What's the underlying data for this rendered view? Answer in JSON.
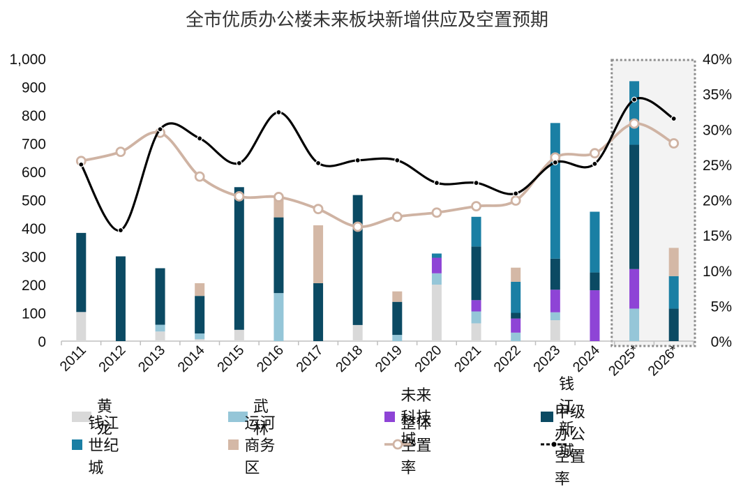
{
  "chart_data": {
    "title": "全市优质办公楼未来板块新增供应及空置预期",
    "type": "bar",
    "stacked": true,
    "categories": [
      "2011",
      "2012",
      "2013",
      "2014",
      "2015",
      "2016",
      "2017",
      "2018",
      "2019",
      "2020",
      "2021",
      "2022",
      "2023",
      "2024",
      "2025*",
      "2026*"
    ],
    "left_axis": {
      "ylim": [
        0,
        1000
      ],
      "ticks": [
        "0",
        "100",
        "200",
        "300",
        "400",
        "500",
        "600",
        "700",
        "800",
        "900",
        "1,000"
      ]
    },
    "right_axis": {
      "ylim": [
        0,
        40
      ],
      "ticks": [
        "0%",
        "5%",
        "10%",
        "15%",
        "20%",
        "25%",
        "30%",
        "35%",
        "40%"
      ]
    },
    "series": [
      {
        "name": "黄龙",
        "color": "#d9d9d9",
        "values": [
          103,
          0,
          34,
          7,
          40,
          0,
          0,
          57,
          0,
          200,
          63,
          0,
          74,
          0,
          0,
          0
        ]
      },
      {
        "name": "武林",
        "color": "#95c6d8",
        "values": [
          0,
          0,
          24,
          20,
          0,
          170,
          0,
          0,
          22,
          40,
          42,
          30,
          28,
          0,
          115,
          0
        ]
      },
      {
        "name": "未来科技城",
        "color": "#8e44d6",
        "values": [
          0,
          0,
          0,
          0,
          0,
          0,
          0,
          0,
          0,
          55,
          40,
          50,
          80,
          180,
          140,
          0
        ]
      },
      {
        "name": "钱江新城",
        "color": "#0b4a63",
        "values": [
          280,
          300,
          200,
          133,
          505,
          268,
          205,
          460,
          117,
          0,
          190,
          20,
          110,
          63,
          440,
          115
        ]
      },
      {
        "name": "钱江世纪城",
        "color": "#1a7fa4",
        "values": [
          0,
          0,
          0,
          0,
          0,
          0,
          0,
          0,
          0,
          15,
          105,
          110,
          480,
          215,
          225,
          115
        ]
      },
      {
        "name": "运河商务区",
        "color": "#d4b8a6",
        "values": [
          0,
          0,
          0,
          45,
          0,
          72,
          205,
          0,
          37,
          0,
          0,
          50,
          0,
          0,
          0,
          100
        ]
      }
    ],
    "lines": [
      {
        "name": "整体空置率",
        "color": "#cfb3a3",
        "axis": "right",
        "marker": "open-circle",
        "values": [
          25.5,
          26.8,
          29.5,
          23.3,
          20.5,
          20.4,
          18.7,
          16.2,
          17.6,
          18.2,
          19.1,
          19.9,
          26.0,
          26.6,
          30.8,
          28.0
        ]
      },
      {
        "name": "甲级办公空置率",
        "color": "#000000",
        "axis": "right",
        "marker": "dot",
        "values": [
          25.0,
          15.7,
          30.0,
          28.7,
          25.2,
          32.4,
          25.2,
          25.6,
          25.6,
          22.4,
          22.4,
          20.9,
          25.3,
          25.1,
          34.2,
          31.5
        ]
      }
    ],
    "highlight_categories": [
      "2025*",
      "2026*"
    ]
  }
}
